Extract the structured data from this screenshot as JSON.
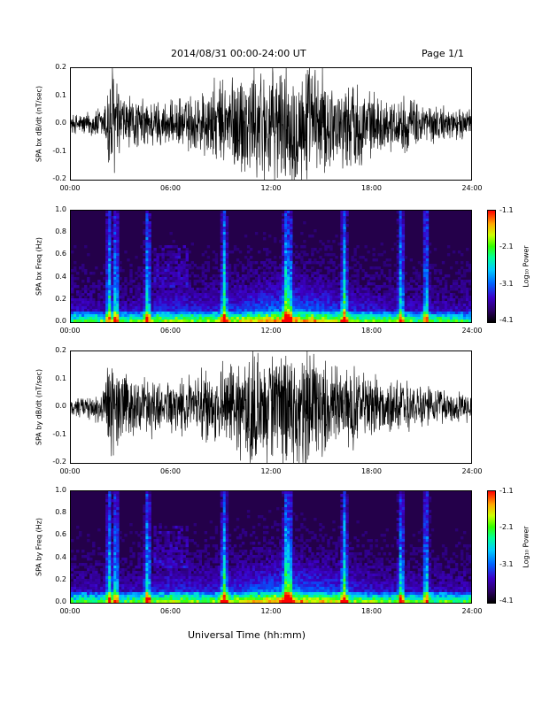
{
  "header": {
    "title": "2014/08/31   00:00-24:00 UT",
    "page": "Page 1/1"
  },
  "xaxis_label": "Universal Time (hh:mm)",
  "colorbar": {
    "label": "Log₁₀ Power",
    "ticks": [
      "-1.1",
      "-2.1",
      "-3.1",
      "-4.1"
    ]
  },
  "colors": {
    "trace": "#000000",
    "spectrogram_bg": "#24004a"
  },
  "chart_data": [
    {
      "type": "line",
      "title": "",
      "ylabel": "SPA bx dB/dt (nT/sec)",
      "xlabel": "",
      "x_ticks": [
        "00:00",
        "06:00",
        "12:00",
        "18:00",
        "24:00"
      ],
      "y_ticks": [
        "0.2",
        "0.1",
        "0.0",
        "-0.1",
        "-0.2"
      ],
      "ylim": [
        -0.2,
        0.2
      ],
      "xlim_hours": [
        0,
        24
      ],
      "envelope": {
        "hours": [
          0,
          1,
          2,
          2.3,
          2.6,
          3,
          4,
          5,
          6,
          7,
          8,
          9,
          10,
          11,
          12,
          12.5,
          13,
          14,
          15,
          16,
          17,
          18,
          19,
          20,
          21,
          22,
          23,
          24
        ],
        "amplitude": [
          0.03,
          0.04,
          0.06,
          0.2,
          0.2,
          0.1,
          0.08,
          0.08,
          0.07,
          0.09,
          0.12,
          0.14,
          0.18,
          0.2,
          0.2,
          0.2,
          0.2,
          0.2,
          0.18,
          0.12,
          0.15,
          0.1,
          0.08,
          0.09,
          0.07,
          0.06,
          0.05,
          0.05
        ]
      }
    },
    {
      "type": "heatmap",
      "title": "",
      "ylabel": "SPA bx Freq (Hz)",
      "xlabel": "",
      "x_ticks": [
        "00:00",
        "06:00",
        "12:00",
        "18:00",
        "24:00"
      ],
      "y_ticks": [
        "1.0",
        "0.8",
        "0.6",
        "0.4",
        "0.2",
        "0.0"
      ],
      "ylim": [
        0,
        1
      ],
      "xlim_hours": [
        0,
        24
      ],
      "color_scale": [
        -4.1,
        -1.1
      ],
      "bright_stripes_hours": [
        2.3,
        2.7,
        4.6,
        9.2,
        12.9,
        13.1,
        16.4,
        19.8,
        21.3
      ]
    },
    {
      "type": "line",
      "title": "",
      "ylabel": "SPA by dB/dt (nT/sec)",
      "xlabel": "",
      "x_ticks": [
        "00:00",
        "06:00",
        "12:00",
        "18:00",
        "24:00"
      ],
      "y_ticks": [
        "0.2",
        "0.1",
        "0.0",
        "-0.1",
        "-0.2"
      ],
      "ylim": [
        -0.2,
        0.2
      ],
      "xlim_hours": [
        0,
        24
      ],
      "envelope": {
        "hours": [
          0,
          1,
          2,
          2.3,
          2.6,
          3,
          4,
          5,
          6,
          7,
          8,
          9,
          10,
          11,
          12,
          12.5,
          13,
          14,
          15,
          16,
          17,
          18,
          19,
          20,
          21,
          22,
          23,
          24
        ],
        "amplitude": [
          0.03,
          0.04,
          0.06,
          0.2,
          0.2,
          0.12,
          0.1,
          0.09,
          0.08,
          0.1,
          0.12,
          0.13,
          0.15,
          0.17,
          0.2,
          0.2,
          0.2,
          0.2,
          0.17,
          0.12,
          0.14,
          0.1,
          0.08,
          0.08,
          0.07,
          0.06,
          0.05,
          0.05
        ]
      }
    },
    {
      "type": "heatmap",
      "title": "",
      "ylabel": "SPA by Freq (Hz)",
      "xlabel": "Universal Time (hh:mm)",
      "x_ticks": [
        "00:00",
        "06:00",
        "12:00",
        "18:00",
        "24:00"
      ],
      "y_ticks": [
        "1.0",
        "0.8",
        "0.6",
        "0.4",
        "0.2",
        "0.0"
      ],
      "ylim": [
        0,
        1
      ],
      "xlim_hours": [
        0,
        24
      ],
      "color_scale": [
        -4.1,
        -1.1
      ],
      "bright_stripes_hours": [
        2.3,
        2.7,
        4.6,
        9.2,
        12.9,
        13.1,
        16.4,
        19.8,
        21.3
      ]
    }
  ]
}
